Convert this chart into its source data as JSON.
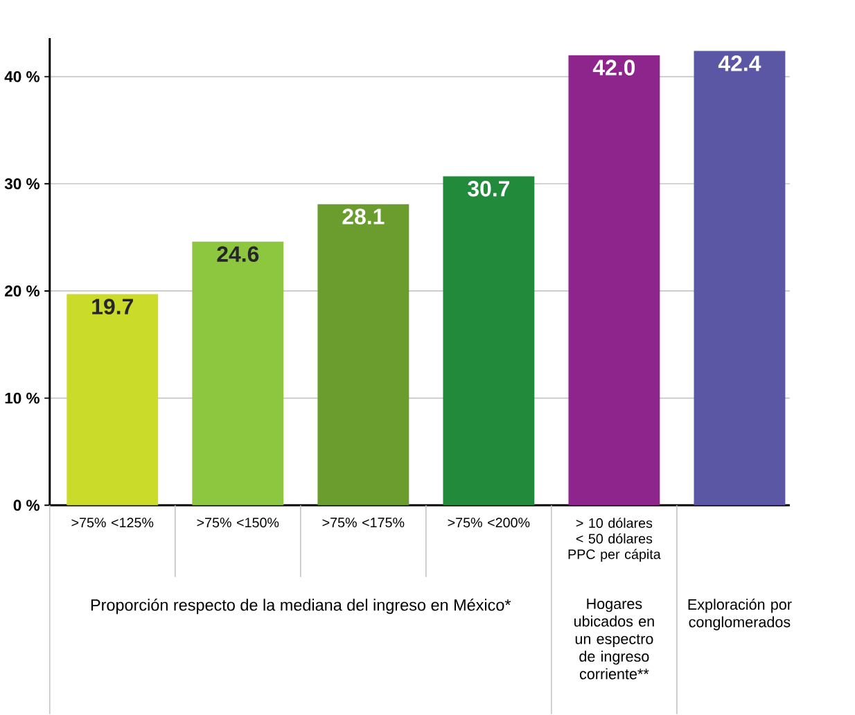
{
  "chart_data": {
    "type": "bar",
    "categories": [
      ">75% <125%",
      ">75% <150%",
      ">75% <175%",
      ">75% <200%",
      "> 10 dólares < 50 dólares PPC per cápita",
      null
    ],
    "values": [
      19.7,
      24.6,
      28.1,
      30.7,
      42.0,
      42.4
    ],
    "colors": [
      "#cbdb2a",
      "#8dc63f",
      "#6a9c2e",
      "#228b3b",
      "#8e258d",
      "#5b57a4"
    ],
    "value_labels": [
      "19.7",
      "24.6",
      "28.1",
      "30.7",
      "42.0",
      "42.4"
    ],
    "ylim": [
      0,
      43.6
    ],
    "yticks": [
      {
        "value": 0,
        "label": "0 %"
      },
      {
        "value": 10,
        "label": "10 %"
      },
      {
        "value": 20,
        "label": "20 %"
      },
      {
        "value": 30,
        "label": "30 %"
      },
      {
        "value": 40,
        "label": "40 %"
      }
    ],
    "grid": "y",
    "annotations": [
      "Proporción respecto de la mediana del ingreso en México*",
      "Hogares ubicados en un espectro de ingreso corriente**",
      "Exploración por conglomerados"
    ]
  }
}
